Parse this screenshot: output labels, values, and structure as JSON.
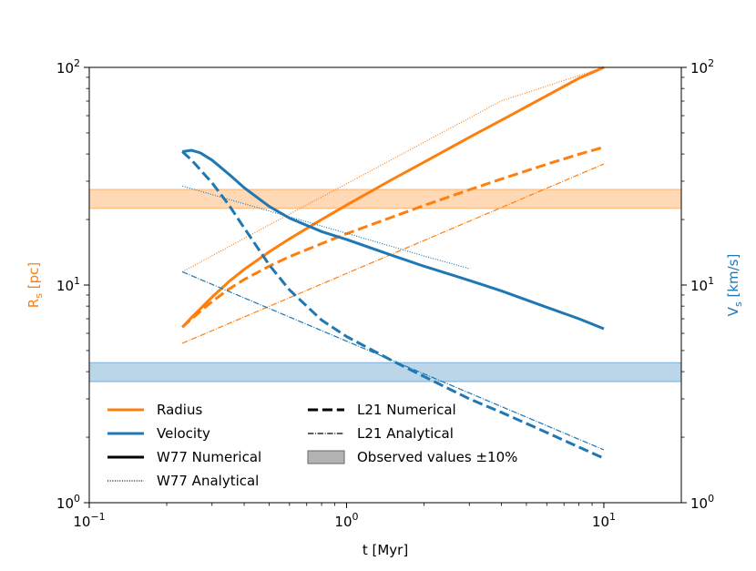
{
  "chart_data": {
    "type": "line",
    "title": "",
    "xlabel": "t [Myr]",
    "ylabel_left": "R",
    "ylabel_left_sub": "s",
    "ylabel_left_unit": " [pc]",
    "ylabel_right": "V",
    "ylabel_right_sub": "s",
    "ylabel_right_unit": " [km/s]",
    "xscale": "log",
    "yscale": "log",
    "xlim": [
      0.1,
      20
    ],
    "ylim_left": [
      1,
      100
    ],
    "ylim_right": [
      1,
      100
    ],
    "x_ticks": [
      {
        "value": 0.1,
        "base": "10",
        "exp": "−1"
      },
      {
        "value": 1,
        "base": "10",
        "exp": "0"
      },
      {
        "value": 10,
        "base": "10",
        "exp": "1"
      }
    ],
    "y_ticks_left": [
      {
        "value": 1,
        "base": "10",
        "exp": "0"
      },
      {
        "value": 10,
        "base": "10",
        "exp": "1"
      },
      {
        "value": 100,
        "base": "10",
        "exp": "2"
      }
    ],
    "y_ticks_right": [
      {
        "value": 1,
        "base": "10",
        "exp": "0"
      },
      {
        "value": 10,
        "base": "10",
        "exp": "1"
      },
      {
        "value": 100,
        "base": "10",
        "exp": "2"
      }
    ],
    "colors": {
      "radius": "#ff7f0e",
      "velocity": "#1f77b4",
      "black": "#000000",
      "band_gray": "#999999"
    },
    "bands": [
      {
        "name": "radius-band",
        "axis": "left",
        "y0": 22.5,
        "y1": 27.5,
        "color": "#ff7f0e"
      },
      {
        "name": "velocity-band",
        "axis": "right",
        "y0": 3.6,
        "y1": 4.4,
        "color": "#1f77b4"
      }
    ],
    "series": [
      {
        "name": "Radius W77 Numerical",
        "axis": "left",
        "color": "#ff7f0e",
        "style": "solid",
        "x": [
          0.23,
          0.25,
          0.3,
          0.35,
          0.4,
          0.5,
          0.6,
          0.8,
          1.0,
          1.5,
          2,
          3,
          4,
          6,
          8,
          10
        ],
        "y": [
          6.4,
          7.1,
          8.8,
          10.4,
          11.8,
          14.2,
          16.3,
          20.0,
          23.3,
          30.5,
          36.7,
          47.7,
          57.2,
          74.1,
          89.1,
          100
        ]
      },
      {
        "name": "Radius W77 Analytical",
        "axis": "left",
        "color": "#ff7f0e",
        "style": "dotted",
        "x": [
          0.23,
          0.5,
          1,
          2,
          4,
          10
        ],
        "y": [
          11.5,
          18.9,
          29.2,
          45.3,
          70.2,
          100
        ]
      },
      {
        "name": "Radius L21 Numerical",
        "axis": "left",
        "color": "#ff7f0e",
        "style": "dashed",
        "x": [
          0.23,
          0.25,
          0.3,
          0.35,
          0.4,
          0.5,
          0.6,
          0.8,
          1.0,
          1.5,
          2,
          3,
          4,
          6,
          8,
          10
        ],
        "y": [
          6.4,
          7.0,
          8.4,
          9.6,
          10.6,
          12.2,
          13.5,
          15.5,
          17.2,
          20.5,
          23.2,
          27.4,
          30.7,
          35.9,
          39.9,
          43.0
        ]
      },
      {
        "name": "Radius L21 Analytical",
        "axis": "left",
        "color": "#ff7f0e",
        "style": "dashdot",
        "x": [
          0.23,
          10
        ],
        "y": [
          5.4,
          36.0
        ]
      },
      {
        "name": "Velocity W77 Numerical",
        "axis": "right",
        "color": "#1f77b4",
        "style": "solid",
        "x": [
          0.23,
          0.25,
          0.27,
          0.3,
          0.35,
          0.4,
          0.5,
          0.6,
          0.8,
          1.0,
          1.5,
          2,
          3,
          4,
          6,
          8,
          10
        ],
        "y": [
          41,
          41.6,
          40.5,
          37.5,
          32.2,
          28.0,
          23.0,
          20.3,
          17.6,
          16.2,
          13.7,
          12.2,
          10.5,
          9.4,
          7.9,
          7.0,
          6.3
        ]
      },
      {
        "name": "Velocity W77 Analytical",
        "axis": "right",
        "color": "#1f77b4",
        "style": "dotted",
        "x": [
          0.23,
          0.5,
          1,
          2,
          3
        ],
        "y": [
          28.5,
          21.9,
          17.3,
          13.6,
          11.9
        ]
      },
      {
        "name": "Velocity L21 Numerical",
        "axis": "right",
        "color": "#1f77b4",
        "style": "dashed",
        "x": [
          0.23,
          0.25,
          0.3,
          0.35,
          0.4,
          0.5,
          0.6,
          0.8,
          1.0,
          1.5,
          2,
          3,
          4,
          6,
          8,
          10
        ],
        "y": [
          41,
          37.5,
          29.5,
          23.2,
          18.3,
          12.4,
          9.5,
          6.9,
          5.8,
          4.5,
          3.8,
          3.0,
          2.6,
          2.1,
          1.8,
          1.6
        ]
      },
      {
        "name": "Velocity L21 Analytical",
        "axis": "right",
        "color": "#1f77b4",
        "style": "dashdot",
        "x": [
          0.23,
          10
        ],
        "y": [
          11.5,
          1.75
        ]
      }
    ],
    "legend": {
      "placement": "lower-left",
      "entries": [
        {
          "label": "Radius",
          "color": "#ff7f0e",
          "style": "solid",
          "kind": "line",
          "width": 3
        },
        {
          "label": "Velocity",
          "color": "#1f77b4",
          "style": "solid",
          "kind": "line",
          "width": 3
        },
        {
          "label": "W77 Numerical",
          "color": "#000000",
          "style": "solid",
          "kind": "line",
          "width": 3
        },
        {
          "label": "W77 Analytical",
          "color": "#000000",
          "style": "dotted",
          "kind": "line",
          "width": 1.2
        },
        {
          "label": "L21 Numerical",
          "color": "#000000",
          "style": "dashed",
          "kind": "line",
          "width": 3
        },
        {
          "label": "L21 Analytical",
          "color": "#000000",
          "style": "dashdot",
          "kind": "line",
          "width": 1.2
        },
        {
          "label": "Observed values ±10%",
          "color": "#999999",
          "style": "solid",
          "kind": "patch",
          "width": 1
        }
      ]
    }
  }
}
